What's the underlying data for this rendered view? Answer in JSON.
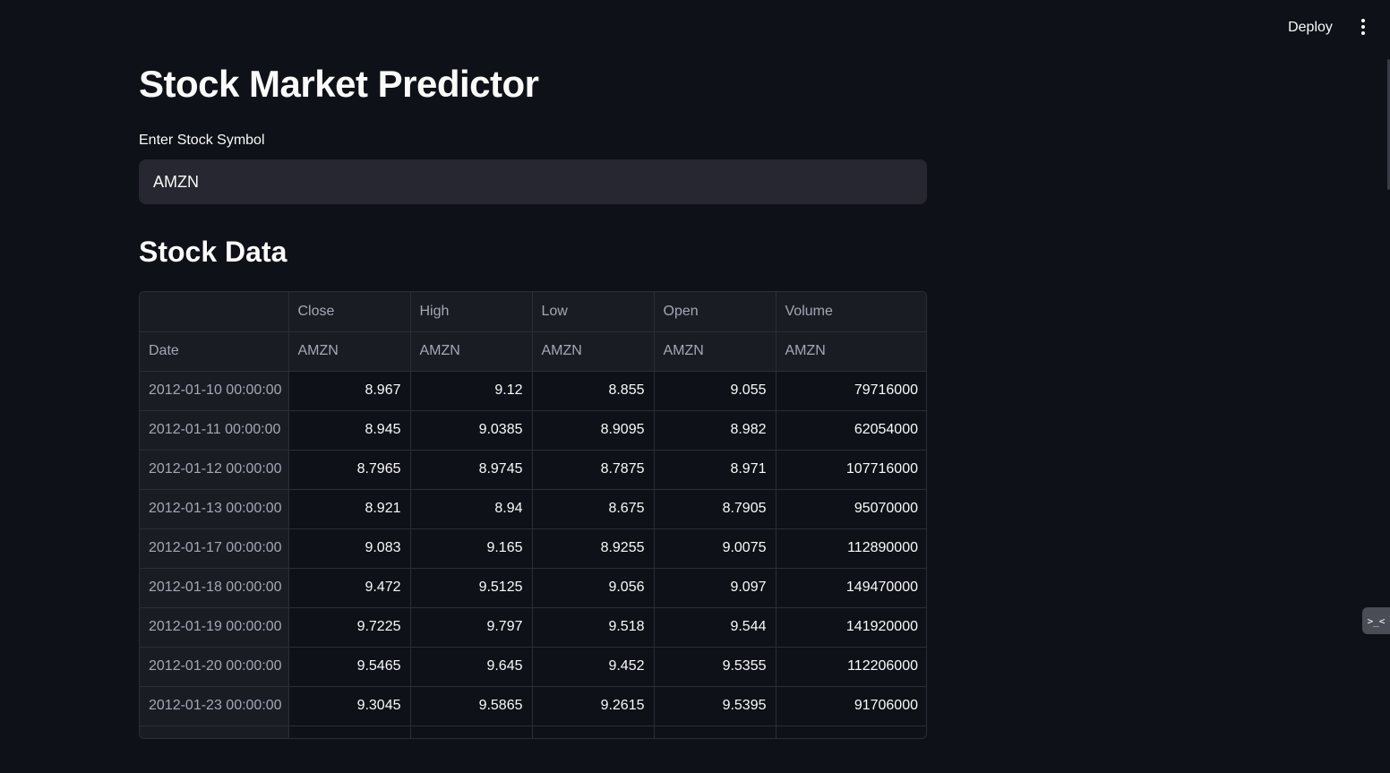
{
  "header": {
    "deploy_label": "Deploy",
    "menu_icon": "kebab-menu-icon"
  },
  "main": {
    "title": "Stock Market Predictor",
    "input_label": "Enter Stock Symbol",
    "input_value": "AMZN",
    "section_title": "Stock Data"
  },
  "table": {
    "header_row1": [
      "",
      "Close",
      "High",
      "Low",
      "Open",
      "Volume"
    ],
    "header_row2": [
      "Date",
      "AMZN",
      "AMZN",
      "AMZN",
      "AMZN",
      "AMZN"
    ],
    "rows": [
      [
        "2012-01-10 00:00:00",
        "8.967",
        "9.12",
        "8.855",
        "9.055",
        "79716000"
      ],
      [
        "2012-01-11 00:00:00",
        "8.945",
        "9.0385",
        "8.9095",
        "8.982",
        "62054000"
      ],
      [
        "2012-01-12 00:00:00",
        "8.7965",
        "8.9745",
        "8.7875",
        "8.971",
        "107716000"
      ],
      [
        "2012-01-13 00:00:00",
        "8.921",
        "8.94",
        "8.675",
        "8.7905",
        "95070000"
      ],
      [
        "2012-01-17 00:00:00",
        "9.083",
        "9.165",
        "8.9255",
        "9.0075",
        "112890000"
      ],
      [
        "2012-01-18 00:00:00",
        "9.472",
        "9.5125",
        "9.056",
        "9.097",
        "149470000"
      ],
      [
        "2012-01-19 00:00:00",
        "9.7225",
        "9.797",
        "9.518",
        "9.544",
        "141920000"
      ],
      [
        "2012-01-20 00:00:00",
        "9.5465",
        "9.645",
        "9.452",
        "9.5355",
        "112206000"
      ],
      [
        "2012-01-23 00:00:00",
        "9.3045",
        "9.5865",
        "9.2615",
        "9.5395",
        "91706000"
      ]
    ]
  },
  "side_button": {
    "label": ">_<"
  }
}
